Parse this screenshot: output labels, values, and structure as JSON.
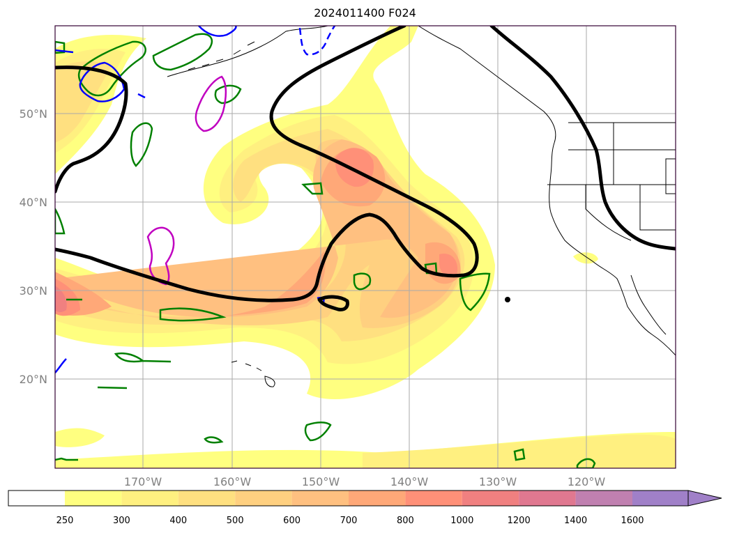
{
  "title": "2024011400 F024",
  "latitude_labels": [
    "50°N",
    "40°N",
    "30°N",
    "20°N"
  ],
  "longitude_labels": [
    "170°W",
    "160°W",
    "150°W",
    "140°W",
    "130°W",
    "120°W"
  ],
  "colorbar": {
    "ticks": [
      "250",
      "300",
      "400",
      "500",
      "600",
      "700",
      "800",
      "1000",
      "1200",
      "1400",
      "1600"
    ],
    "colors": [
      "#ffffff",
      "#ffff80",
      "#fff080",
      "#ffe080",
      "#ffd080",
      "#ffc080",
      "#ffa878",
      "#ff9078",
      "#f08080",
      "#e07890",
      "#c080b0",
      "#a080c8"
    ],
    "extend": "max"
  },
  "contour_colors": {
    "thick_line": "#000000",
    "green": "#008000",
    "blue": "#0000ff",
    "magenta": "#c000c0"
  }
}
